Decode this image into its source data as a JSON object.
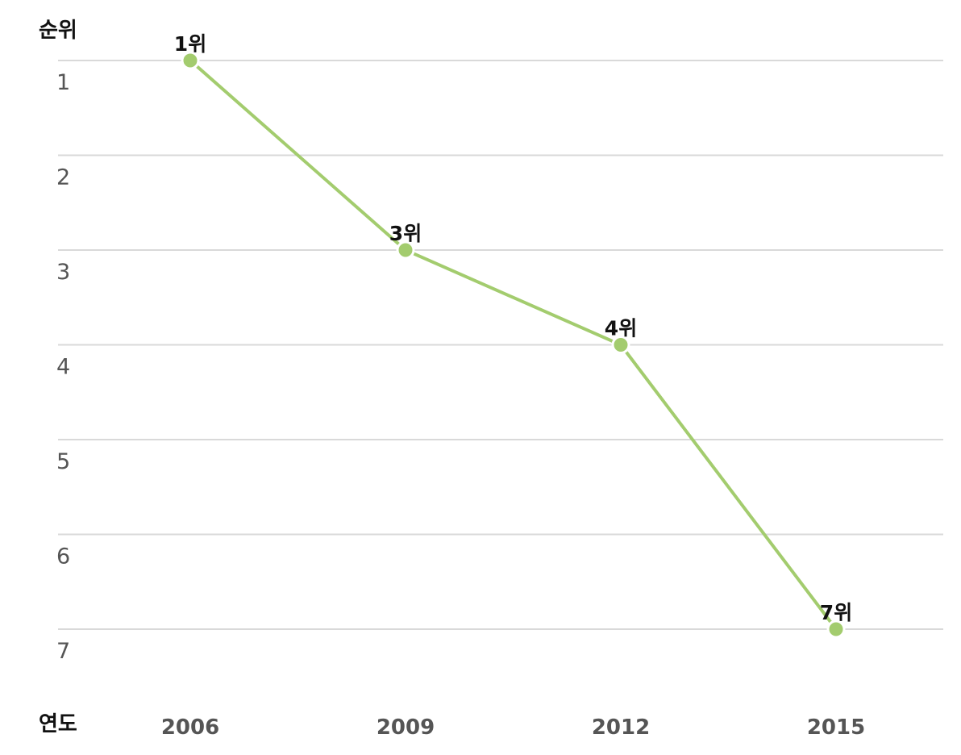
{
  "chart_data": {
    "type": "line",
    "ylabel": "순위",
    "xlabel": "연도",
    "categories": [
      "2006",
      "2009",
      "2012",
      "2015"
    ],
    "y_ticks": [
      "1",
      "2",
      "3",
      "4",
      "5",
      "6",
      "7"
    ],
    "ylim": [
      1,
      7
    ],
    "y_axis_inverted": true,
    "grid": true,
    "legend": "none",
    "series": [
      {
        "values": [
          1,
          3,
          4,
          7
        ],
        "labels": [
          "1위",
          "3위",
          "4위",
          "7위"
        ],
        "color": "#a3cc6e"
      }
    ]
  }
}
